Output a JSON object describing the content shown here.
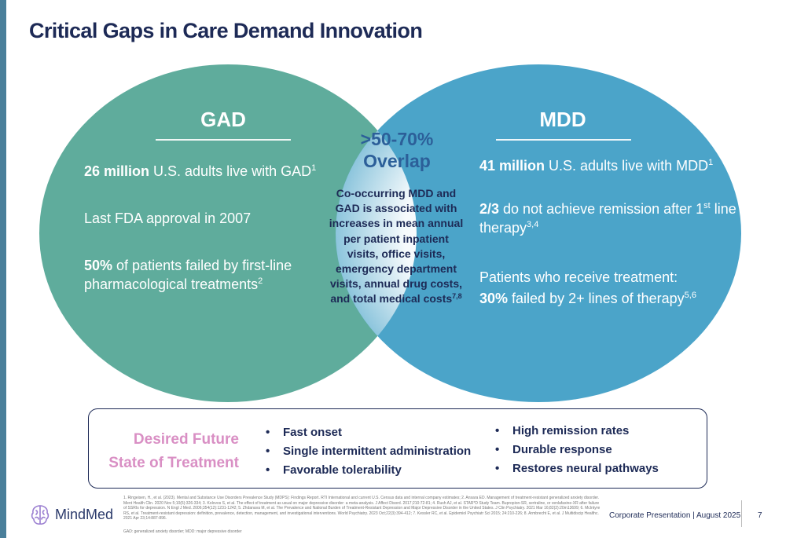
{
  "slide": {
    "title": "Critical Gaps in Care Demand Innovation"
  },
  "colors": {
    "gad_circle": "#5fac9c",
    "mdd_circle": "#4ba4c9",
    "overlap_center": "#ffffff",
    "title": "#1d2a56",
    "future_label": "#d98fc4"
  },
  "gad": {
    "heading": "GAD",
    "line1_bold": "26 million",
    "line1_text": " U.S. adults live with GAD",
    "line1_sup": "1",
    "line2": "Last FDA approval in 2007",
    "line3_bold": "50%",
    "line3_text": " of patients failed by first-line pharmacological treatments",
    "line3_sup": "2"
  },
  "mdd": {
    "heading": "MDD",
    "line1_bold": "41 million",
    "line1_text": " U.S. adults live with MDD",
    "line1_sup": "1",
    "line2_bold": "2/3",
    "line2_text_a": " do not achieve remission after 1",
    "line2_sup_a": "st",
    "line2_text_b": " line therapy",
    "line2_sup_b": "3,4",
    "line3_text": "Patients who receive treatment:",
    "line4_bold": "30%",
    "line4_text": " failed by 2+ lines of therapy",
    "line4_sup": "5,6"
  },
  "overlap": {
    "pct_line1": ">50-70%",
    "pct_line2": "Overlap",
    "description": "Co-occurring MDD and GAD is associated with increases in mean annual per patient inpatient visits, office visits, emergency department visits, annual drug costs, and total medical costs",
    "description_sup": "7,8"
  },
  "future_state": {
    "label_line1": "Desired Future",
    "label_line2": "State of Treatment",
    "left_bullets": [
      "Fast onset",
      "Single intermittent administration",
      "Favorable tolerability"
    ],
    "right_bullets": [
      "High remission rates",
      "Durable response",
      "Restores neural pathways"
    ]
  },
  "footer": {
    "logo_icon": "brain-icon",
    "brand": "MindMed",
    "references": "1. Ringeisen, H., et al. (2023). Mental and Substance Use Disorders Prevalence Study (MDPS): Findings Report. RTI International and current U.S. Census data and internal company estimates; 2. Ansara ED. Management of treatment-resistant generalized anxiety disorder. Ment Health Clin. 2020 Nov 5;10(6):326-334; 3. Kolovos S, et al. The effect of treatment as usual on major depressive disorder: a meta-analysis. J Affect Disord. 2017;210:72-81; 4. Rush AJ, et al. STAR*D Study Team. Bupropion-SR, sertraline, or venlafaxine-XR after failure of SSRIs for depression. N Engl J Med. 2006;354(12):1231-1242; 5. Zhdanava M, et al. The Prevalence and National Burden of Treatment-Resistant Depression and Major Depressive Disorder in the United States. J Clin Psychiatry. 2021 Mar 16;82(2):20m13699; 6. McIntyre RS, et al. Treatment-resistant depression: definition, prevalence, detection, management, and investigational interventions. World Psychiatry. 2023 Oct;22(3):394-412; 7. Kessler RC, et al. Epidemiol Psychiatr Sci 2015; 24:210-226; 8. Armbrecht E, et al. J Multidiscip Healthc. 2021 Apr 23;14:887-896.",
    "abbreviations": "GAD: generalized anxiety disorder; MDD: major depressive disorder",
    "presentation": "Corporate Presentation | August 2025",
    "page_number": "7"
  }
}
